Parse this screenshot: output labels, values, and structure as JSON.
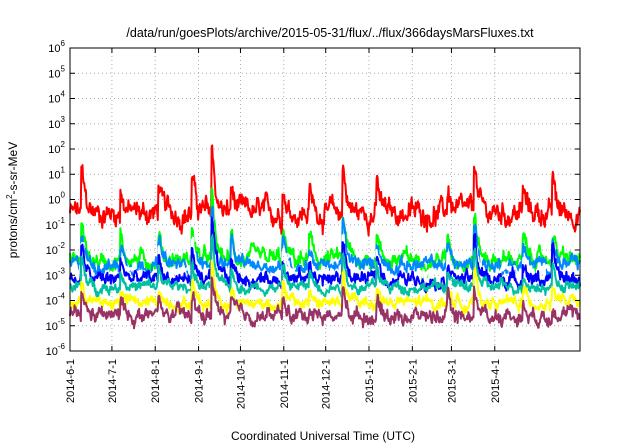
{
  "chart_data": {
    "type": "line",
    "title": "/data/run/goesPlots/archive/2015-05-31/flux/../flux/366daysMarsFluxes.txt",
    "xlabel": "Coordinated Universal Time (UTC)",
    "ylabel_parts": [
      "protons/cm",
      "2",
      "-s-sr-MeV"
    ],
    "y_scale": "log",
    "ylim": [
      1e-06,
      1000000.0
    ],
    "y_ticks": [
      {
        "value": 1e-06,
        "base": "10",
        "exp": "-6"
      },
      {
        "value": 1e-05,
        "base": "10",
        "exp": "-5"
      },
      {
        "value": 0.0001,
        "base": "10",
        "exp": "-4"
      },
      {
        "value": 0.001,
        "base": "10",
        "exp": "-3"
      },
      {
        "value": 0.01,
        "base": "10",
        "exp": "-2"
      },
      {
        "value": 0.1,
        "base": "10",
        "exp": "-1"
      },
      {
        "value": 1.0,
        "base": "10",
        "exp": "0"
      },
      {
        "value": 10.0,
        "base": "10",
        "exp": "1"
      },
      {
        "value": 100.0,
        "base": "10",
        "exp": "2"
      },
      {
        "value": 1000.0,
        "base": "10",
        "exp": "3"
      },
      {
        "value": 10000.0,
        "base": "10",
        "exp": "4"
      },
      {
        "value": 100000.0,
        "base": "10",
        "exp": "5"
      },
      {
        "value": 1000000.0,
        "base": "10",
        "exp": "6"
      }
    ],
    "xlim": [
      "2014-06-01",
      "2015-06-01"
    ],
    "x_ticks": [
      "2014-6-1",
      "2014-7-1",
      "2014-8-1",
      "2014-9-1",
      "2014-10-1",
      "2014-11-1",
      "2014-12-1",
      "2015-1-1",
      "2015-2-1",
      "2015-3-1",
      "2015-4-1"
    ],
    "grid": true,
    "series": [
      {
        "color": "#ff0000",
        "base": 0.3,
        "amp": 0.45,
        "spike": 2.6
      },
      {
        "color": "#00ff00",
        "base": 0.004,
        "amp": 0.35,
        "spike": 2.4
      },
      {
        "color": "#0088ff",
        "base": 0.0025,
        "amp": 0.28,
        "spike": 2.2
      },
      {
        "color": "#ffffff",
        "base": 0.0012,
        "amp": 0.22,
        "spike": 2.0
      },
      {
        "color": "#0000ff",
        "base": 0.0007,
        "amp": 0.28,
        "spike": 2.2
      },
      {
        "color": "#00c0a0",
        "base": 0.00035,
        "amp": 0.22,
        "spike": 1.8
      },
      {
        "color": "#ffff00",
        "base": 8e-05,
        "amp": 0.25,
        "spike": 1.6
      },
      {
        "color": "#993366",
        "base": 2.5e-05,
        "amp": 0.3,
        "spike": 1.4
      }
    ],
    "events": [
      {
        "date": "2014-06-10",
        "strength": 0.55
      },
      {
        "date": "2014-07-08",
        "strength": 0.35
      },
      {
        "date": "2014-08-04",
        "strength": 0.4
      },
      {
        "date": "2014-08-28",
        "strength": 0.5
      },
      {
        "date": "2014-09-11",
        "strength": 1.0
      },
      {
        "date": "2014-09-25",
        "strength": 0.35
      },
      {
        "date": "2014-11-01",
        "strength": 0.4
      },
      {
        "date": "2014-11-20",
        "strength": 0.3
      },
      {
        "date": "2014-12-14",
        "strength": 0.7
      },
      {
        "date": "2015-01-07",
        "strength": 0.45
      },
      {
        "date": "2015-02-27",
        "strength": 0.35
      },
      {
        "date": "2015-03-18",
        "strength": 0.75
      },
      {
        "date": "2015-04-22",
        "strength": 0.3
      },
      {
        "date": "2015-05-13",
        "strength": 0.45
      }
    ]
  }
}
